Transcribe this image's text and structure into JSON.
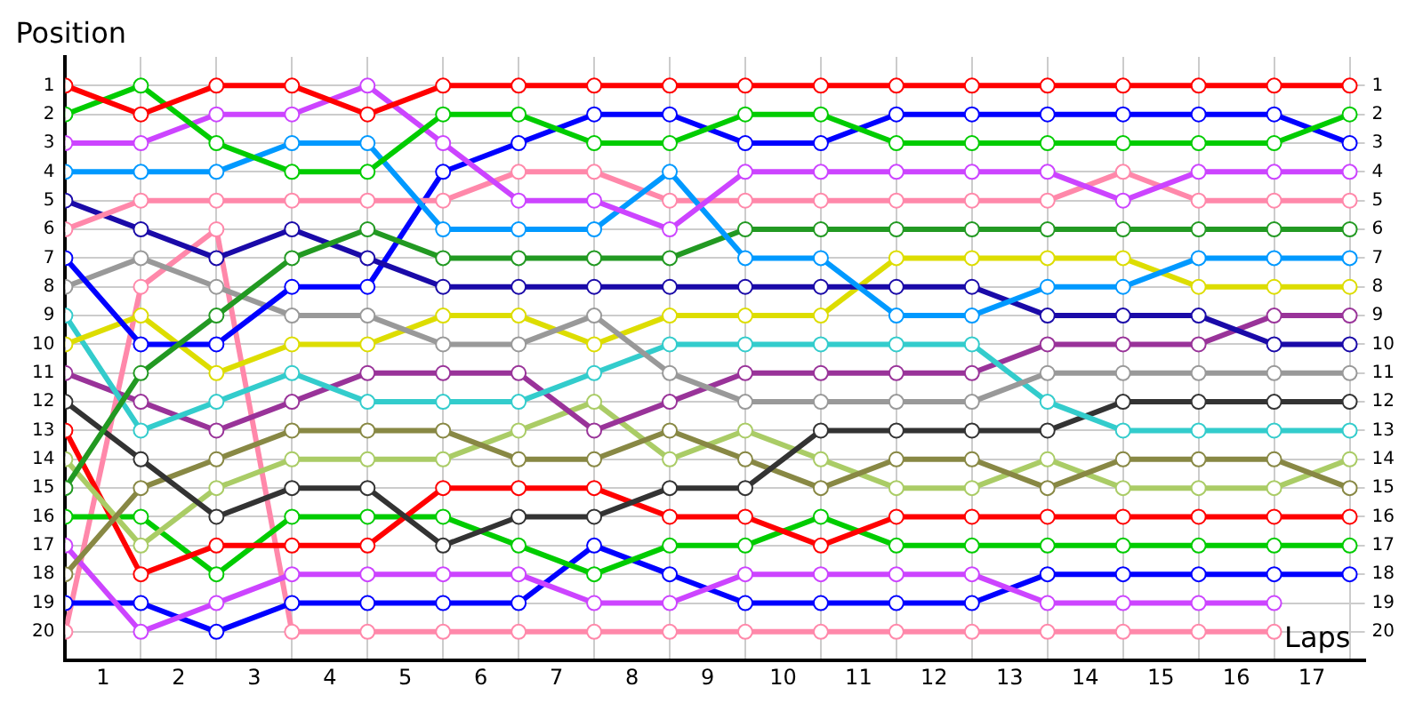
{
  "chart_data": {
    "type": "line",
    "xlabel": "Laps",
    "ylabel": "Position",
    "x": [
      0,
      1,
      2,
      3,
      4,
      5,
      6,
      7,
      8,
      9,
      10,
      11,
      12,
      13,
      14,
      15,
      16,
      17
    ],
    "xlim": [
      0,
      17.2
    ],
    "xticks": [
      {
        "value": 0,
        "label": null
      },
      {
        "value": 0.5,
        "label": "1"
      },
      {
        "value": 1,
        "label": null
      },
      {
        "value": 1.5,
        "label": "2"
      },
      {
        "value": 2,
        "label": null
      },
      {
        "value": 2.5,
        "label": "3"
      },
      {
        "value": 3,
        "label": null
      },
      {
        "value": 3.5,
        "label": "4"
      },
      {
        "value": 4,
        "label": null
      },
      {
        "value": 4.5,
        "label": "5"
      },
      {
        "value": 5,
        "label": null
      },
      {
        "value": 5.5,
        "label": "6"
      },
      {
        "value": 6,
        "label": null
      },
      {
        "value": 6.5,
        "label": "7"
      },
      {
        "value": 7,
        "label": null
      },
      {
        "value": 7.5,
        "label": "8"
      },
      {
        "value": 8,
        "label": null
      },
      {
        "value": 8.5,
        "label": "9"
      },
      {
        "value": 9,
        "label": null
      },
      {
        "value": 9.5,
        "label": "10"
      },
      {
        "value": 10,
        "label": null
      },
      {
        "value": 10.5,
        "label": "11"
      },
      {
        "value": 11,
        "label": null
      },
      {
        "value": 11.5,
        "label": "12"
      },
      {
        "value": 12,
        "label": null
      },
      {
        "value": 12.5,
        "label": "13"
      },
      {
        "value": 13,
        "label": null
      },
      {
        "value": 13.5,
        "label": "14"
      },
      {
        "value": 14,
        "label": null
      },
      {
        "value": 14.5,
        "label": "15"
      },
      {
        "value": 15,
        "label": null
      },
      {
        "value": 15.5,
        "label": "16"
      },
      {
        "value": 16,
        "label": null
      },
      {
        "value": 16.5,
        "label": "17"
      },
      {
        "value": 17,
        "label": null
      }
    ],
    "ylim": [
      21,
      0
    ],
    "yticks": [
      1,
      2,
      3,
      4,
      5,
      6,
      7,
      8,
      9,
      10,
      11,
      12,
      13,
      14,
      15,
      16,
      17,
      18,
      19,
      20
    ],
    "y2lim": [
      21,
      0
    ],
    "y2ticks": [
      1,
      2,
      3,
      4,
      5,
      6,
      7,
      8,
      9,
      10,
      11,
      12,
      13,
      14,
      15,
      16,
      17,
      18,
      19,
      20
    ],
    "grid": true,
    "legend": false,
    "marker": "circle",
    "line_style": "solid",
    "series": [
      {
        "color": "#ff0000",
        "values": [
          1,
          2,
          1,
          1,
          2,
          1,
          1,
          1,
          1,
          1,
          1,
          1,
          1,
          1,
          1,
          1,
          1,
          1
        ]
      },
      {
        "color": "#00cc00",
        "values": [
          2,
          1,
          3,
          4,
          4,
          2,
          2,
          3,
          3,
          2,
          2,
          3,
          3,
          3,
          3,
          3,
          3,
          2
        ]
      },
      {
        "color": "#cc44ff",
        "values": [
          3,
          3,
          2,
          2,
          1,
          3,
          5,
          5,
          6,
          4,
          4,
          4,
          4,
          4,
          5,
          4,
          4,
          4
        ]
      },
      {
        "color": "#0099ff",
        "values": [
          4,
          4,
          4,
          3,
          3,
          6,
          6,
          6,
          4,
          7,
          7,
          9,
          9,
          8,
          8,
          7,
          7,
          7
        ]
      },
      {
        "color": "#ff88aa",
        "values": [
          6,
          5,
          5,
          5,
          5,
          5,
          4,
          4,
          5,
          5,
          5,
          5,
          5,
          5,
          4,
          5,
          5,
          5
        ]
      },
      {
        "color": "#229922",
        "values": [
          15,
          11,
          9,
          7,
          6,
          7,
          7,
          7,
          7,
          6,
          6,
          6,
          6,
          6,
          6,
          6,
          6,
          6
        ]
      },
      {
        "color": "#1a0aa8",
        "values": [
          5,
          6,
          7,
          6,
          7,
          8,
          8,
          8,
          8,
          8,
          8,
          8,
          8,
          9,
          9,
          9,
          10,
          10
        ]
      },
      {
        "color": "#0000ff",
        "values": [
          7,
          10,
          10,
          8,
          8,
          4,
          3,
          2,
          2,
          3,
          3,
          2,
          2,
          2,
          2,
          2,
          2,
          3
        ]
      },
      {
        "color": "#999999",
        "values": [
          8,
          7,
          8,
          9,
          9,
          10,
          10,
          9,
          11,
          12,
          12,
          12,
          12,
          11,
          11,
          11,
          11,
          11
        ]
      },
      {
        "color": "#dddd00",
        "values": [
          10,
          9,
          11,
          10,
          10,
          9,
          9,
          10,
          9,
          9,
          9,
          7,
          7,
          7,
          7,
          8,
          8,
          8
        ]
      },
      {
        "color": "#33cccc",
        "values": [
          9,
          13,
          12,
          11,
          12,
          12,
          12,
          11,
          10,
          10,
          10,
          10,
          10,
          12,
          13,
          13,
          13,
          13
        ]
      },
      {
        "color": "#993399",
        "values": [
          11,
          12,
          13,
          12,
          11,
          11,
          11,
          13,
          12,
          11,
          11,
          11,
          11,
          10,
          10,
          10,
          9,
          9
        ]
      },
      {
        "color": "#333333",
        "values": [
          12,
          14,
          16,
          15,
          15,
          17,
          16,
          16,
          15,
          15,
          13,
          13,
          13,
          13,
          12,
          12,
          12,
          12
        ]
      },
      {
        "color": "#888844",
        "values": [
          18,
          15,
          14,
          13,
          13,
          13,
          14,
          14,
          13,
          14,
          15,
          14,
          14,
          15,
          14,
          14,
          14,
          15
        ]
      },
      {
        "color": "#aacc66",
        "values": [
          14,
          17,
          15,
          14,
          14,
          14,
          13,
          12,
          14,
          13,
          14,
          15,
          15,
          14,
          15,
          15,
          15,
          14
        ]
      },
      {
        "color": "#ff0000",
        "values": [
          13,
          18,
          17,
          17,
          17,
          15,
          15,
          15,
          16,
          16,
          17,
          16,
          16,
          16,
          16,
          16,
          16,
          16
        ]
      },
      {
        "color": "#00cc00",
        "values": [
          16,
          16,
          18,
          16,
          16,
          16,
          17,
          18,
          17,
          17,
          16,
          17,
          17,
          17,
          17,
          17,
          17,
          17
        ]
      },
      {
        "color": "#cc44ff",
        "values": [
          17,
          20,
          19,
          18,
          18,
          18,
          18,
          19,
          19,
          18,
          18,
          18,
          18,
          19,
          19,
          19,
          19,
          null
        ]
      },
      {
        "color": "#0000ff",
        "values": [
          19,
          19,
          20,
          19,
          19,
          19,
          19,
          17,
          18,
          19,
          19,
          19,
          19,
          18,
          18,
          18,
          18,
          18
        ]
      },
      {
        "color": "#ff88aa",
        "values": [
          20,
          8,
          6,
          20,
          20,
          20,
          20,
          20,
          20,
          20,
          20,
          20,
          20,
          20,
          20,
          20,
          20,
          null
        ]
      }
    ]
  }
}
